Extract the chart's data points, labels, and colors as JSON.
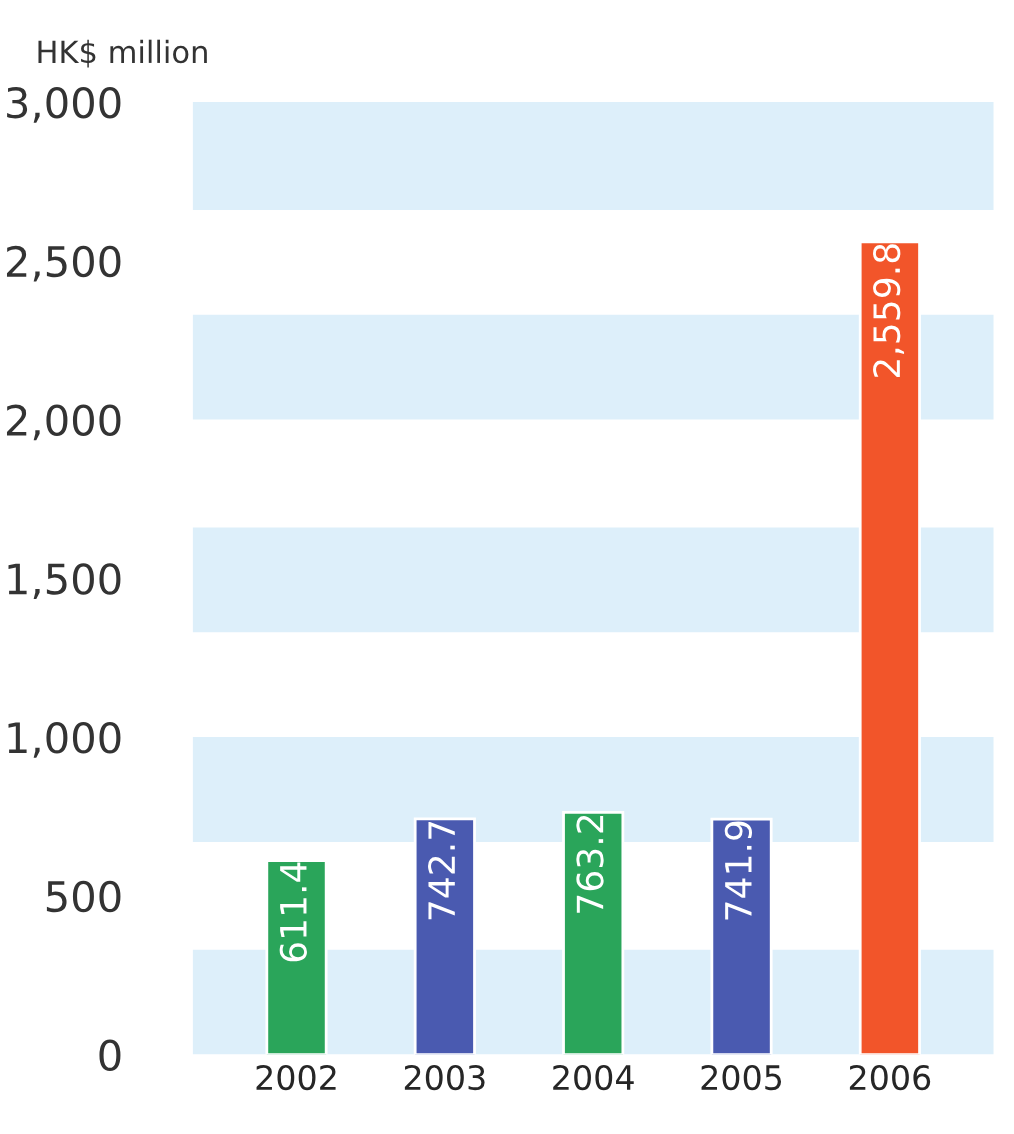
{
  "chart_data": {
    "type": "bar",
    "ylabel": "HK$ million",
    "categories": [
      "2002",
      "2003",
      "2004",
      "2005",
      "2006"
    ],
    "values": [
      611.4,
      742.7,
      763.2,
      741.9,
      2559.8
    ],
    "colors": [
      "#2aa55a",
      "#4a5ab0",
      "#2aa55a",
      "#4a5ab0",
      "#f2552a"
    ],
    "value_labels": [
      "611.4",
      "742.7",
      "763.2",
      "741.9",
      "2,559.8"
    ],
    "ylim": [
      0,
      3000
    ],
    "yticks": [
      0,
      {
        "value": 500,
        "label": "500"
      },
      {
        "value": 1000,
        "label": "1,000"
      },
      {
        "value": 1500,
        "label": "1,500"
      },
      {
        "value": 2000,
        "label": "2,000"
      },
      {
        "value": 2500,
        "label": "2,500"
      },
      {
        "value": 3000,
        "label": "3,000"
      }
    ],
    "bands": [
      {
        "axis": "y",
        "from": 0,
        "to": 330,
        "color": "#ddeffa"
      },
      {
        "axis": "y",
        "from": 670,
        "to": 1000,
        "color": "#ddeffa"
      },
      {
        "axis": "y",
        "from": 1330,
        "to": 1660,
        "color": "#ddeffa"
      },
      {
        "axis": "y",
        "from": 2000,
        "to": 2330,
        "color": "#ddeffa"
      },
      {
        "axis": "y",
        "from": 2660,
        "to": 3000,
        "color": "#ddeffa"
      }
    ],
    "grid": false,
    "legend": false
  }
}
